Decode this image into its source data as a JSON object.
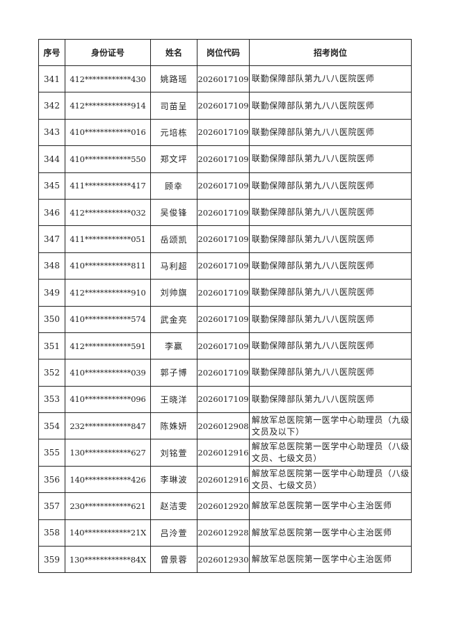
{
  "headers": [
    "序号",
    "身份证号",
    "姓名",
    "岗位代码",
    "招考岗位"
  ],
  "rows": [
    [
      "341",
      "412************430",
      "姚路瑶",
      "2026017109",
      "联勤保障部队第九八八医院医师"
    ],
    [
      "342",
      "412************914",
      "司苗呈",
      "2026017109",
      "联勤保障部队第九八八医院医师"
    ],
    [
      "343",
      "410************016",
      "元培栋",
      "2026017109",
      "联勤保障部队第九八八医院医师"
    ],
    [
      "344",
      "410************550",
      "郑文坪",
      "2026017109",
      "联勤保障部队第九八八医院医师"
    ],
    [
      "345",
      "411************417",
      "顾幸",
      "2026017109",
      "联勤保障部队第九八八医院医师"
    ],
    [
      "346",
      "412************032",
      "吴俊锋",
      "2026017109",
      "联勤保障部队第九八八医院医师"
    ],
    [
      "347",
      "411************051",
      "岳颂凯",
      "2026017109",
      "联勤保障部队第九八八医院医师"
    ],
    [
      "348",
      "410************811",
      "马利超",
      "2026017109",
      "联勤保障部队第九八八医院医师"
    ],
    [
      "349",
      "412************910",
      "刘帅旗",
      "2026017109",
      "联勤保障部队第九八八医院医师"
    ],
    [
      "350",
      "410************574",
      "武金亮",
      "2026017109",
      "联勤保障部队第九八八医院医师"
    ],
    [
      "351",
      "412************591",
      "李赢",
      "2026017109",
      "联勤保障部队第九八八医院医师"
    ],
    [
      "352",
      "410************039",
      "郭子博",
      "2026017109",
      "联勤保障部队第九八八医院医师"
    ],
    [
      "353",
      "410************096",
      "王晓洋",
      "2026017109",
      "联勤保障部队第九八八医院医师"
    ],
    [
      "354",
      "232************847",
      "陈姝妍",
      "2026012908",
      "解放军总医院第一医学中心助理员（九级文员及以下）"
    ],
    [
      "355",
      "130************627",
      "刘铭萱",
      "2026012916",
      "解放军总医院第一医学中心助理员（八级文员、七级文员）"
    ],
    [
      "356",
      "140************426",
      "李琳波",
      "2026012916",
      "解放军总医院第一医学中心助理员（八级文员、七级文员）"
    ],
    [
      "357",
      "230************621",
      "赵洁雯",
      "2026012920",
      "解放军总医院第一医学中心主治医师"
    ],
    [
      "358",
      "140************21X",
      "吕泠萱",
      "2026012928",
      "解放军总医院第一医学中心主治医师"
    ],
    [
      "359",
      "130************84X",
      "曾景蓉",
      "2026012930",
      "解放军总医院第一医学中心主治医师"
    ]
  ]
}
